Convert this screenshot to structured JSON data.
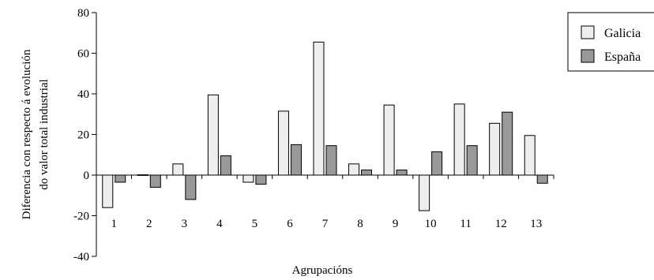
{
  "chart_data": {
    "type": "bar",
    "title": "",
    "xlabel": "Agrupacións",
    "ylabel": [
      "Diferencia con respecto á evolución",
      "do valor total industrial"
    ],
    "ylim": [
      -40,
      80
    ],
    "yticks": [
      80,
      60,
      40,
      20,
      0,
      -20,
      -40
    ],
    "categories": [
      "1",
      "2",
      "3",
      "4",
      "5",
      "6",
      "7",
      "8",
      "9",
      "10",
      "11",
      "12",
      "13"
    ],
    "series": [
      {
        "name": "Galicia",
        "color": "#eeeeee",
        "values": [
          -16,
          0,
          5.5,
          39.5,
          -3.5,
          31.5,
          65.5,
          5.5,
          34.5,
          -17.5,
          35,
          25.5,
          19.5
        ]
      },
      {
        "name": "España",
        "color": "#999999",
        "values": [
          -3.5,
          -6,
          -12,
          9.5,
          -4.5,
          15,
          14.5,
          2.5,
          2.5,
          11.5,
          14.5,
          31,
          -4
        ]
      }
    ],
    "legend_position": "right",
    "grid": false
  }
}
